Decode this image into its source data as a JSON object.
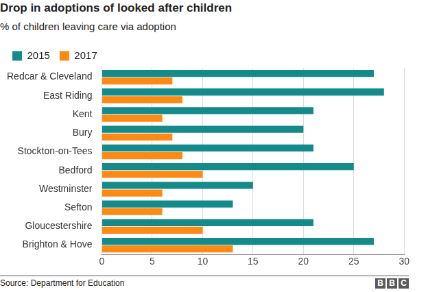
{
  "chart_data": {
    "type": "bar",
    "orientation": "horizontal",
    "title": "Drop in adoptions of looked after children",
    "subtitle": "% of children leaving care via adoption",
    "source": "Source: Department for Education",
    "logo": "BBC",
    "categories": [
      "Redcar & Cleveland",
      "East Riding",
      "Kent",
      "Bury",
      "Stockton-on-Tees",
      "Bedford",
      "Westminster",
      "Sefton",
      "Gloucestershire",
      "Brighton & Hove"
    ],
    "series": [
      {
        "name": "2015",
        "color": "#148b8a",
        "values": [
          27,
          28,
          21,
          20,
          21,
          25,
          15,
          13,
          21,
          27
        ]
      },
      {
        "name": "2017",
        "color": "#fd8a15",
        "values": [
          7,
          8,
          6,
          7,
          8,
          10,
          6,
          6,
          10,
          13
        ]
      }
    ],
    "xlim": [
      0,
      30
    ],
    "xticks": [
      0,
      5,
      10,
      15,
      20,
      25,
      30
    ],
    "grid": true,
    "legend": "top-left"
  }
}
